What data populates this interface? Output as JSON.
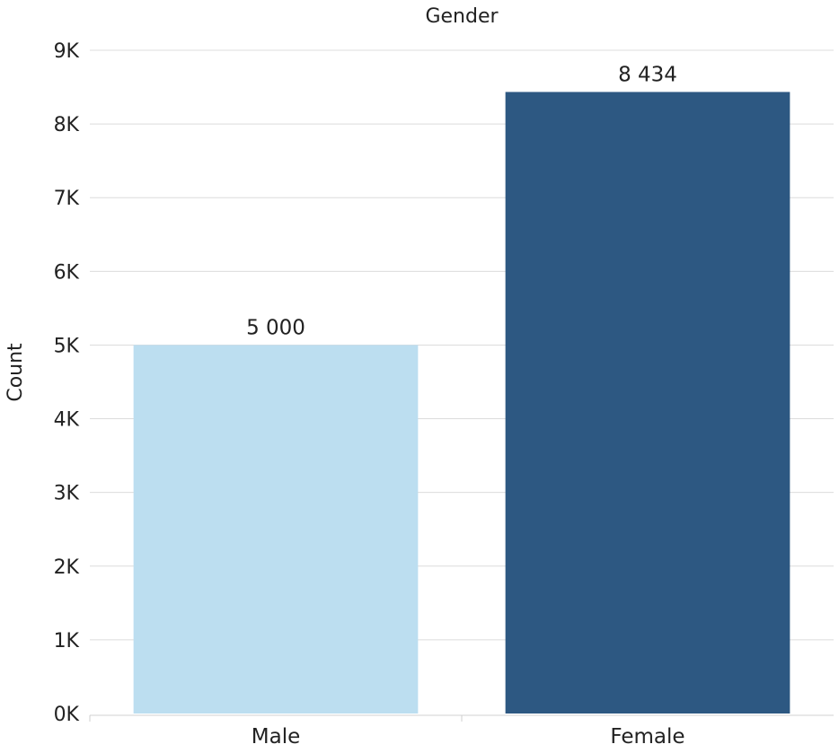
{
  "chart_data": {
    "type": "bar",
    "title": "Gender",
    "xlabel": "",
    "ylabel": "Count",
    "categories": [
      "Male",
      "Female"
    ],
    "values": [
      5000,
      8434
    ],
    "data_labels": [
      "5 000",
      "8 434"
    ],
    "colors": [
      "#bcdef0",
      "#2d5882"
    ],
    "ylim": [
      0,
      9000
    ],
    "yticks": [
      0,
      1000,
      2000,
      3000,
      4000,
      5000,
      6000,
      7000,
      8000,
      9000
    ],
    "ytick_labels": [
      "0K",
      "1K",
      "2K",
      "3K",
      "4K",
      "5K",
      "6K",
      "7K",
      "8K",
      "9K"
    ],
    "grid": true,
    "legend": "none"
  }
}
